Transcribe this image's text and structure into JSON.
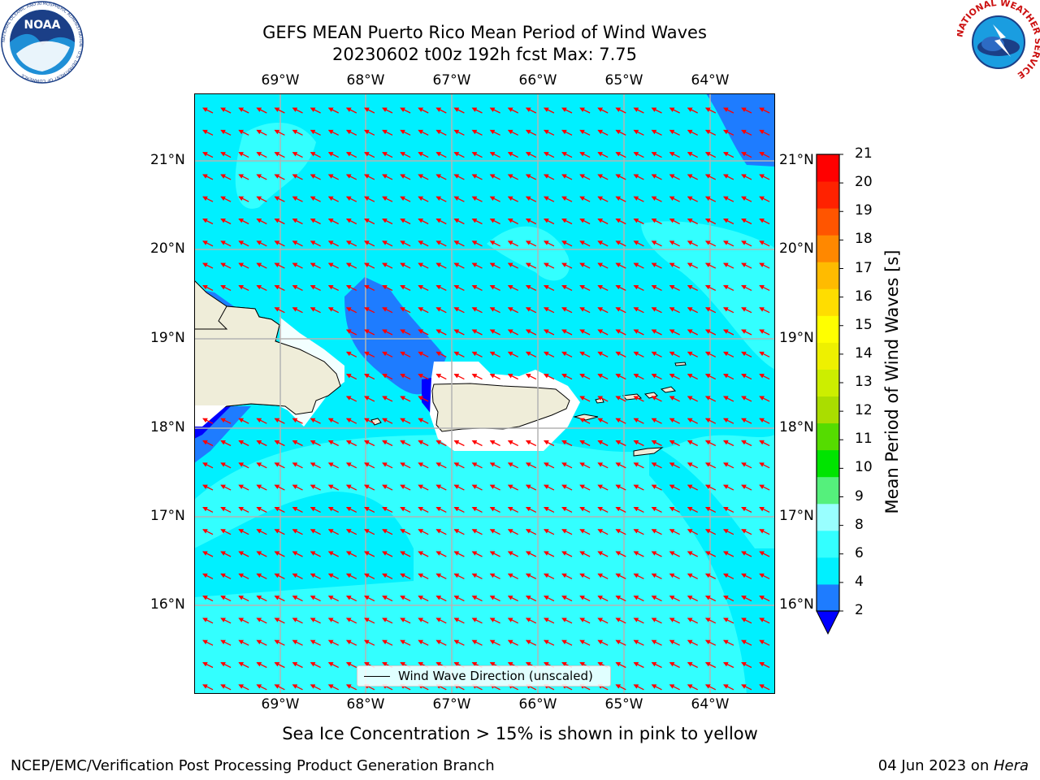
{
  "title": {
    "line1": "GEFS MEAN Puerto Rico Mean Period of Wind Waves",
    "line2": "20230602 t00z 192h fcst   Max: 7.75"
  },
  "map": {
    "lon_labels": [
      "69°W",
      "68°W",
      "67°W",
      "66°W",
      "65°W",
      "64°W"
    ],
    "lat_labels": [
      "21°N",
      "20°N",
      "19°N",
      "18°N",
      "17°N",
      "16°N"
    ],
    "extent": {
      "lon_min": "70.0°W",
      "lon_max": "63.25°W",
      "lat_min": "15.0°N",
      "lat_max": "21.75°N"
    },
    "vector_color": "#ff0000",
    "land_color": "#efedd9",
    "legend_label": "Wind Wave Direction (unscaled)"
  },
  "colorbar": {
    "label": "Mean Period of Wind Waves [s]",
    "ticks": [
      "2",
      "4",
      "6",
      "8",
      "9",
      "10",
      "11",
      "12",
      "13",
      "14",
      "15",
      "16",
      "17",
      "18",
      "19",
      "20",
      "21"
    ],
    "colors": [
      "#0000ff",
      "#1e7cff",
      "#00f0ff",
      "#33ffff",
      "#99ffff",
      "#55f07c",
      "#00e400",
      "#55dc00",
      "#aadd00",
      "#ccee00",
      "#eef000",
      "#ffff00",
      "#ffdd00",
      "#ffbb00",
      "#ff8800",
      "#ff5500",
      "#ff2200",
      "#ff0000"
    ]
  },
  "footer": {
    "ice_note": "Sea Ice Concentration > 15% is shown in pink to yellow",
    "credit": "NCEP/EMC/Verification Post Processing Product Generation Branch",
    "date": "04 Jun 2023 on ",
    "host": "Hera"
  },
  "logos": {
    "noaa_text": "NOAA",
    "noaa_ring": "NATIONAL OCEANIC AND ATMOSPHERIC ADMINISTRATION · U.S. DEPARTMENT OF COMMERCE",
    "nws_ring": "NATIONAL WEATHER SERVICE"
  }
}
